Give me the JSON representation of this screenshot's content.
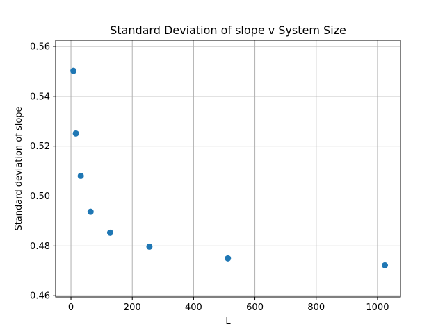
{
  "chart_data": {
    "type": "scatter",
    "title": "Standard Deviation of slope v System Size",
    "xlabel": "L",
    "ylabel": "Standard deviation of slope",
    "xlim": [
      -50,
      1075
    ],
    "ylim": [
      0.4595,
      0.5625
    ],
    "xticks": [
      0,
      200,
      400,
      600,
      800,
      1000
    ],
    "yticks": [
      0.46,
      0.48,
      0.5,
      0.52,
      0.54,
      0.56
    ],
    "xtick_labels": [
      "0",
      "200",
      "400",
      "600",
      "800",
      "1000"
    ],
    "ytick_labels": [
      "0.46",
      "0.48",
      "0.50",
      "0.52",
      "0.54",
      "0.56"
    ],
    "grid": true,
    "legend": "none",
    "marker_color": "#1f77b4",
    "series": [
      {
        "x": [
          8,
          16,
          32,
          64,
          128,
          256,
          512,
          1024
        ],
        "y": [
          0.5502,
          0.5251,
          0.5081,
          0.4937,
          0.4853,
          0.4797,
          0.475,
          0.4722
        ]
      }
    ]
  }
}
